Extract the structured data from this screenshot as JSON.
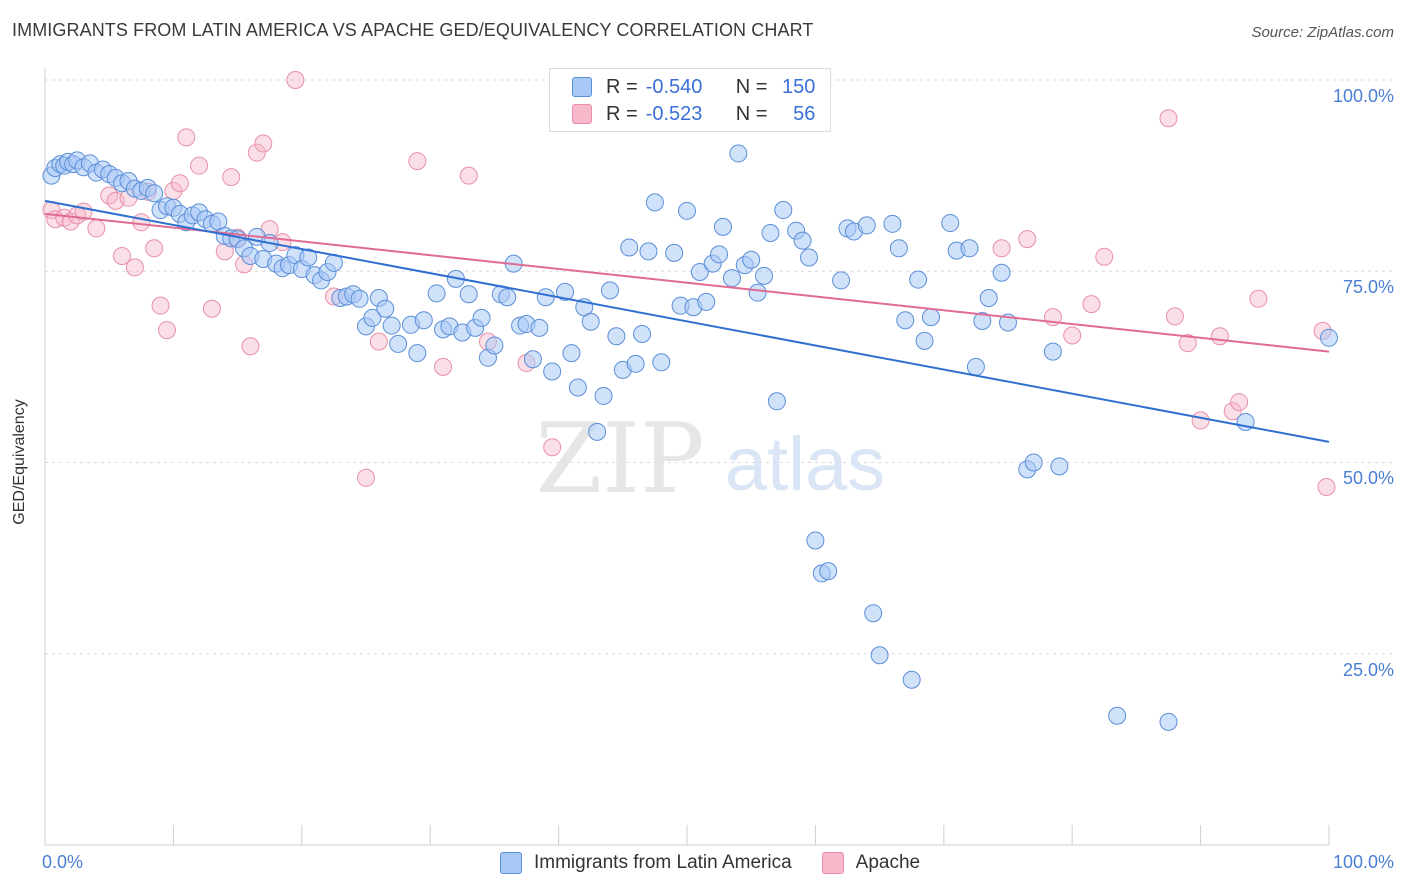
{
  "header": {
    "title": "IMMIGRANTS FROM LATIN AMERICA VS APACHE GED/EQUIVALENCY CORRELATION CHART",
    "source": "Source: ZipAtlas.com"
  },
  "watermark": {
    "zip": "ZIP",
    "atlas": "atlas"
  },
  "legend": {
    "rows": [
      {
        "r_label": "R =",
        "r_value": "-0.540",
        "n_label": "N =",
        "n_value": "150",
        "color": "#a9c8f5"
      },
      {
        "r_label": "R =",
        "r_value": "-0.523",
        "n_label": "N =",
        "n_value": "56",
        "color": "#f7b8ca"
      }
    ]
  },
  "colors": {
    "blue_fill": "#a9c8f5",
    "blue_stroke": "#5b8fd8",
    "blue_line": "#2f6fd0",
    "pink_fill": "#f7b8ca",
    "pink_stroke": "#e890aa",
    "pink_line": "#e06b93",
    "tick_text": "#4a7fd4",
    "grid": "#d8d8d8"
  },
  "chart_data": {
    "type": "scatter",
    "title": "IMMIGRANTS FROM LATIN AMERICA VS APACHE GED/EQUIVALENCY CORRELATION CHART",
    "xlabel": "",
    "ylabel": "GED/Equivalency",
    "xlim": [
      0,
      100
    ],
    "ylim": [
      0,
      104
    ],
    "y_ticks": [
      "25.0%",
      "50.0%",
      "75.0%",
      "100.0%"
    ],
    "y_tick_values": [
      25,
      50,
      75,
      100
    ],
    "x_ticks": [
      "0.0%",
      "100.0%"
    ],
    "x_tick_values": [
      0,
      100
    ],
    "grid": true,
    "legend_position": "bottom",
    "series": [
      {
        "name": "Immigrants from Latin America",
        "trend": [
          [
            0,
            84.2
          ],
          [
            100,
            52.7
          ]
        ],
        "points": [
          [
            0.5,
            87.5
          ],
          [
            0.8,
            88.5
          ],
          [
            1.2,
            89.0
          ],
          [
            1.5,
            88.8
          ],
          [
            1.8,
            89.3
          ],
          [
            2.2,
            89.0
          ],
          [
            2.5,
            89.5
          ],
          [
            3.0,
            88.6
          ],
          [
            3.5,
            89.1
          ],
          [
            4.0,
            87.9
          ],
          [
            4.5,
            88.3
          ],
          [
            5.0,
            87.7
          ],
          [
            5.5,
            87.2
          ],
          [
            6.0,
            86.5
          ],
          [
            6.5,
            86.8
          ],
          [
            7.0,
            85.8
          ],
          [
            7.5,
            85.5
          ],
          [
            8.0,
            85.9
          ],
          [
            8.5,
            85.2
          ],
          [
            9.0,
            83.0
          ],
          [
            9.5,
            83.5
          ],
          [
            10.0,
            83.3
          ],
          [
            10.5,
            82.5
          ],
          [
            11.0,
            81.4
          ],
          [
            11.5,
            82.3
          ],
          [
            12.0,
            82.7
          ],
          [
            12.5,
            81.8
          ],
          [
            13.0,
            81.2
          ],
          [
            13.5,
            81.5
          ],
          [
            14.0,
            79.6
          ],
          [
            14.5,
            79.3
          ],
          [
            15.0,
            79.2
          ],
          [
            15.5,
            78.0
          ],
          [
            16.0,
            77.0
          ],
          [
            16.5,
            79.5
          ],
          [
            17.0,
            76.6
          ],
          [
            17.5,
            78.7
          ],
          [
            18.0,
            76.0
          ],
          [
            18.5,
            75.4
          ],
          [
            19.0,
            75.8
          ],
          [
            19.5,
            77.1
          ],
          [
            20.0,
            75.3
          ],
          [
            20.5,
            76.8
          ],
          [
            21.0,
            74.5
          ],
          [
            21.5,
            73.8
          ],
          [
            22.0,
            74.9
          ],
          [
            22.5,
            76.1
          ],
          [
            23.0,
            71.5
          ],
          [
            23.5,
            71.7
          ],
          [
            24.0,
            72.0
          ],
          [
            24.5,
            71.4
          ],
          [
            25.0,
            67.8
          ],
          [
            25.5,
            68.9
          ],
          [
            26.0,
            71.5
          ],
          [
            26.5,
            70.1
          ],
          [
            27.0,
            67.9
          ],
          [
            27.5,
            65.5
          ],
          [
            28.5,
            68.0
          ],
          [
            29.0,
            64.3
          ],
          [
            29.5,
            68.6
          ],
          [
            30.5,
            72.1
          ],
          [
            31.0,
            67.4
          ],
          [
            31.5,
            67.8
          ],
          [
            32.0,
            74.0
          ],
          [
            32.5,
            67.0
          ],
          [
            33.0,
            72.0
          ],
          [
            33.5,
            67.6
          ],
          [
            34.0,
            68.9
          ],
          [
            34.5,
            63.7
          ],
          [
            35.0,
            65.3
          ],
          [
            35.5,
            72.0
          ],
          [
            36.0,
            71.6
          ],
          [
            36.5,
            76.0
          ],
          [
            37.0,
            67.9
          ],
          [
            37.5,
            68.1
          ],
          [
            38.0,
            63.5
          ],
          [
            38.5,
            67.6
          ],
          [
            39.0,
            71.6
          ],
          [
            39.5,
            61.9
          ],
          [
            40.5,
            72.3
          ],
          [
            41.0,
            64.3
          ],
          [
            41.5,
            59.8
          ],
          [
            42.0,
            70.3
          ],
          [
            42.5,
            68.4
          ],
          [
            43.0,
            54.0
          ],
          [
            43.5,
            58.7
          ],
          [
            44.0,
            72.5
          ],
          [
            44.5,
            66.5
          ],
          [
            45.0,
            62.1
          ],
          [
            45.5,
            78.1
          ],
          [
            46.0,
            62.9
          ],
          [
            46.5,
            66.8
          ],
          [
            47.0,
            77.6
          ],
          [
            47.5,
            84.0
          ],
          [
            48.0,
            63.1
          ],
          [
            49.0,
            77.4
          ],
          [
            49.5,
            70.5
          ],
          [
            50.0,
            82.9
          ],
          [
            50.5,
            70.3
          ],
          [
            51.0,
            74.9
          ],
          [
            51.5,
            71.0
          ],
          [
            52.0,
            76.0
          ],
          [
            52.5,
            77.2
          ],
          [
            52.8,
            80.8
          ],
          [
            53.5,
            74.1
          ],
          [
            54.0,
            90.4
          ],
          [
            54.5,
            75.8
          ],
          [
            55.0,
            76.5
          ],
          [
            55.5,
            72.2
          ],
          [
            56.0,
            74.4
          ],
          [
            56.5,
            80.0
          ],
          [
            57.0,
            58.0
          ],
          [
            57.5,
            83.0
          ],
          [
            58.5,
            80.3
          ],
          [
            59.0,
            79.0
          ],
          [
            59.5,
            76.8
          ],
          [
            60.0,
            39.8
          ],
          [
            60.5,
            35.5
          ],
          [
            61.0,
            35.8
          ],
          [
            62.0,
            73.8
          ],
          [
            62.5,
            80.6
          ],
          [
            63.0,
            80.2
          ],
          [
            64.0,
            81.0
          ],
          [
            64.5,
            30.3
          ],
          [
            65.0,
            24.8
          ],
          [
            66.0,
            81.2
          ],
          [
            66.5,
            78.0
          ],
          [
            67.0,
            68.6
          ],
          [
            67.5,
            21.6
          ],
          [
            68.0,
            73.9
          ],
          [
            68.5,
            65.9
          ],
          [
            69.0,
            69.0
          ],
          [
            70.5,
            81.3
          ],
          [
            71.0,
            77.7
          ],
          [
            72.0,
            78.0
          ],
          [
            72.5,
            62.5
          ],
          [
            73.0,
            68.5
          ],
          [
            73.5,
            71.5
          ],
          [
            74.5,
            74.8
          ],
          [
            75.0,
            68.3
          ],
          [
            76.5,
            49.1
          ],
          [
            77.0,
            50.0
          ],
          [
            78.5,
            64.5
          ],
          [
            79.0,
            49.5
          ],
          [
            83.5,
            16.9
          ],
          [
            87.5,
            16.1
          ],
          [
            93.5,
            55.3
          ],
          [
            100.0,
            66.3
          ]
        ]
      },
      {
        "name": "Apache",
        "trend": [
          [
            0,
            82.5
          ],
          [
            100,
            64.5
          ]
        ],
        "points": [
          [
            0.5,
            83.0
          ],
          [
            0.8,
            81.8
          ],
          [
            1.5,
            82.0
          ],
          [
            2.0,
            81.5
          ],
          [
            2.5,
            82.3
          ],
          [
            3.0,
            82.8
          ],
          [
            4.0,
            80.6
          ],
          [
            5.0,
            84.9
          ],
          [
            5.5,
            84.2
          ],
          [
            6.0,
            77.0
          ],
          [
            6.5,
            84.6
          ],
          [
            7.0,
            75.5
          ],
          [
            7.5,
            81.4
          ],
          [
            8.0,
            85.4
          ],
          [
            8.5,
            78.0
          ],
          [
            9.0,
            70.5
          ],
          [
            9.5,
            67.3
          ],
          [
            10.0,
            85.5
          ],
          [
            10.5,
            86.5
          ],
          [
            11.0,
            92.5
          ],
          [
            12.0,
            88.8
          ],
          [
            13.0,
            70.1
          ],
          [
            14.0,
            77.6
          ],
          [
            14.5,
            87.3
          ],
          [
            15.0,
            79.4
          ],
          [
            15.5,
            75.9
          ],
          [
            16.0,
            65.2
          ],
          [
            16.5,
            90.5
          ],
          [
            17.0,
            91.7
          ],
          [
            17.5,
            80.5
          ],
          [
            18.5,
            78.8
          ],
          [
            19.5,
            100.0
          ],
          [
            22.5,
            71.7
          ],
          [
            25.0,
            48.0
          ],
          [
            26.0,
            65.8
          ],
          [
            29.0,
            89.4
          ],
          [
            31.0,
            62.5
          ],
          [
            33.0,
            87.5
          ],
          [
            34.5,
            65.8
          ],
          [
            37.5,
            63.0
          ],
          [
            39.5,
            52.0
          ],
          [
            74.5,
            78.0
          ],
          [
            76.5,
            79.2
          ],
          [
            78.5,
            69.0
          ],
          [
            80.0,
            66.6
          ],
          [
            81.5,
            70.7
          ],
          [
            82.5,
            76.9
          ],
          [
            87.5,
            95.0
          ],
          [
            88.0,
            69.1
          ],
          [
            89.0,
            65.6
          ],
          [
            90.0,
            55.5
          ],
          [
            91.5,
            66.5
          ],
          [
            92.5,
            56.7
          ],
          [
            93.0,
            57.9
          ],
          [
            94.5,
            71.4
          ],
          [
            99.5,
            67.2
          ],
          [
            99.8,
            46.8
          ]
        ]
      }
    ]
  },
  "bottom_legend": [
    {
      "label": "Immigrants from Latin America",
      "color": "#a9c8f5"
    },
    {
      "label": "Apache",
      "color": "#f7b8ca"
    }
  ]
}
